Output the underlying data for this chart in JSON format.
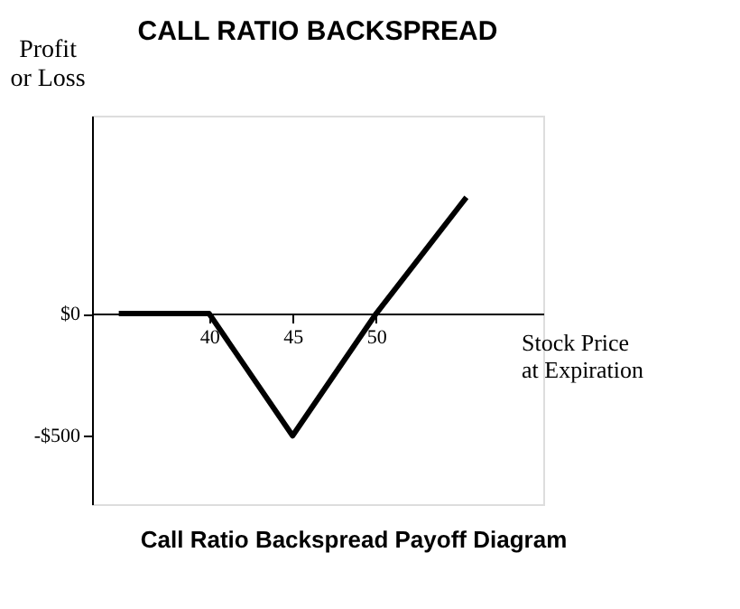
{
  "chart_data": {
    "type": "line",
    "title": "CALL RATIO BACKSPREAD",
    "xlabel": "Stock Price\nat Expiration",
    "ylabel": "Profit\nor Loss",
    "annotations": [
      "Call Ratio Backspread Payoff Diagram"
    ],
    "x": [
      34.6,
      40,
      45,
      50,
      55.4
    ],
    "series": [
      {
        "color": "#000000",
        "values": [
          0,
          0,
          -500,
          0,
          476
        ]
      }
    ],
    "xlim": [
      33,
      60
    ],
    "xticks": [
      40,
      45,
      50
    ],
    "ylim": [
      -780,
      810
    ],
    "yticks": [
      {
        "value": 0,
        "label": "$0"
      },
      {
        "value": -500,
        "label": "-$500"
      }
    ],
    "grid": false,
    "marker": "none",
    "line_style": "solid"
  }
}
